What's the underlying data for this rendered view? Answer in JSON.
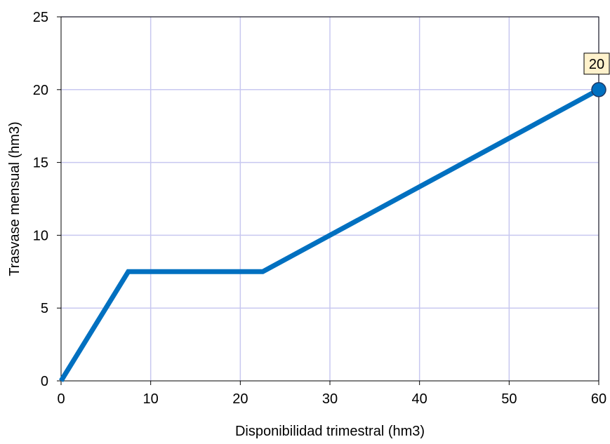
{
  "chart_data": {
    "type": "line",
    "title": "",
    "xlabel": "Disponibilidad trimestral (hm3)",
    "ylabel": "Trasvase mensual (hm3)",
    "xlim": [
      0,
      60
    ],
    "ylim": [
      0,
      25
    ],
    "x_ticks": [
      0,
      10,
      20,
      30,
      40,
      50,
      60
    ],
    "y_ticks": [
      0,
      5,
      10,
      15,
      20,
      25
    ],
    "grid": true,
    "legend": "none",
    "series": [
      {
        "color": "#0070c0",
        "points": [
          {
            "x": 0,
            "y": 0
          },
          {
            "x": 7.5,
            "y": 7.5
          },
          {
            "x": 22.5,
            "y": 7.5
          },
          {
            "x": 60,
            "y": 20
          }
        ]
      }
    ],
    "highlight_point": {
      "x": 60,
      "y": 20,
      "label": "20"
    },
    "colors": {
      "line": "#0070c0",
      "marker_fill": "#0070c0",
      "marker_stroke": "#1f3864",
      "grid": "#c8c8f0",
      "label_bg": "#fff2cc"
    }
  }
}
